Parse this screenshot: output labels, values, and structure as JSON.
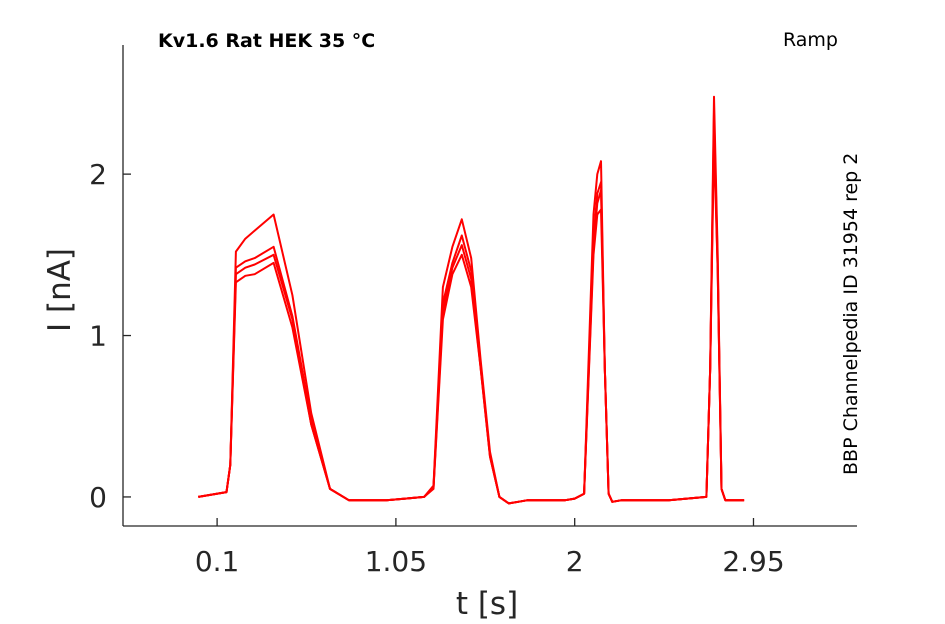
{
  "chart_data": {
    "type": "line",
    "title": "Kv1.6  Rat  HEK  35 °C",
    "protocol_label": "Ramp",
    "side_label": "BBP Channelpedia ID 31954 rep 2",
    "xlabel": "t [s]",
    "ylabel": "I [nA]",
    "xlim": [
      -0.4,
      3.5
    ],
    "ylim": [
      -0.18,
      2.8
    ],
    "xticks": [
      0.1,
      1.05,
      2,
      2.95
    ],
    "xtick_labels": [
      "0.1",
      "1.05",
      "2",
      "2.95"
    ],
    "yticks": [
      0,
      1,
      2
    ],
    "ytick_labels": [
      "0",
      "1",
      "2"
    ],
    "grid": false,
    "legend": "none",
    "color": "#ff0000",
    "series": [
      {
        "x": [
          -0.0,
          0.15,
          0.17,
          0.2,
          0.25,
          0.3,
          0.4,
          0.5,
          0.6,
          0.7,
          0.8,
          0.85,
          0.9,
          1.0,
          1.1,
          1.2,
          1.25,
          1.3,
          1.35,
          1.4,
          1.45,
          1.5,
          1.55,
          1.6,
          1.65,
          1.7,
          1.75,
          1.8,
          1.85,
          1.9,
          1.95,
          2.0,
          2.05,
          2.1,
          2.12,
          2.14,
          2.16,
          2.18,
          2.2,
          2.25,
          2.3,
          2.5,
          2.7,
          2.72,
          2.74,
          2.76,
          2.78,
          2.8,
          2.85,
          2.9
        ],
        "values": [
          0.0,
          0.03,
          0.2,
          1.33,
          1.37,
          1.38,
          1.45,
          1.05,
          0.45,
          0.05,
          -0.02,
          -0.02,
          -0.02,
          -0.02,
          -0.01,
          0.0,
          0.05,
          1.1,
          1.38,
          1.5,
          1.3,
          0.8,
          0.25,
          0.0,
          -0.04,
          -0.03,
          -0.02,
          -0.02,
          -0.02,
          -0.02,
          -0.02,
          -0.01,
          0.02,
          1.5,
          1.75,
          1.78,
          0.8,
          0.02,
          -0.03,
          -0.02,
          -0.02,
          -0.02,
          0.0,
          0.8,
          2.2,
          1.4,
          0.05,
          -0.02,
          -0.02,
          -0.02
        ]
      },
      {
        "x": [
          -0.0,
          0.15,
          0.17,
          0.2,
          0.25,
          0.3,
          0.4,
          0.5,
          0.6,
          0.7,
          0.8,
          0.85,
          0.9,
          1.0,
          1.1,
          1.2,
          1.25,
          1.3,
          1.35,
          1.4,
          1.45,
          1.5,
          1.55,
          1.6,
          1.65,
          1.7,
          1.75,
          1.8,
          1.85,
          1.9,
          1.95,
          2.0,
          2.05,
          2.1,
          2.12,
          2.14,
          2.16,
          2.18,
          2.2,
          2.25,
          2.3,
          2.5,
          2.7,
          2.72,
          2.74,
          2.76,
          2.78,
          2.8,
          2.85,
          2.9
        ],
        "values": [
          0.0,
          0.03,
          0.2,
          1.38,
          1.42,
          1.44,
          1.5,
          1.1,
          0.45,
          0.05,
          -0.02,
          -0.02,
          -0.02,
          -0.02,
          -0.01,
          0.0,
          0.06,
          1.15,
          1.42,
          1.56,
          1.35,
          0.8,
          0.25,
          0.0,
          -0.04,
          -0.03,
          -0.02,
          -0.02,
          -0.02,
          -0.02,
          -0.02,
          -0.01,
          0.02,
          1.55,
          1.82,
          1.9,
          0.8,
          0.02,
          -0.03,
          -0.02,
          -0.02,
          -0.02,
          0.0,
          0.8,
          2.3,
          1.4,
          0.05,
          -0.02,
          -0.02,
          -0.02
        ]
      },
      {
        "x": [
          -0.0,
          0.15,
          0.17,
          0.2,
          0.25,
          0.3,
          0.4,
          0.5,
          0.6,
          0.7,
          0.8,
          0.85,
          0.9,
          1.0,
          1.1,
          1.2,
          1.25,
          1.3,
          1.35,
          1.4,
          1.45,
          1.5,
          1.55,
          1.6,
          1.65,
          1.7,
          1.75,
          1.8,
          1.85,
          1.9,
          1.95,
          2.0,
          2.05,
          2.1,
          2.12,
          2.14,
          2.16,
          2.18,
          2.2,
          2.25,
          2.3,
          2.5,
          2.7,
          2.72,
          2.74,
          2.76,
          2.78,
          2.8,
          2.85,
          2.9
        ],
        "values": [
          0.0,
          0.03,
          0.2,
          1.42,
          1.46,
          1.48,
          1.55,
          1.12,
          0.48,
          0.05,
          -0.02,
          -0.02,
          -0.02,
          -0.02,
          -0.01,
          0.0,
          0.06,
          1.2,
          1.45,
          1.62,
          1.4,
          0.82,
          0.26,
          0.0,
          -0.04,
          -0.03,
          -0.02,
          -0.02,
          -0.02,
          -0.02,
          -0.02,
          -0.01,
          0.02,
          1.6,
          1.88,
          1.95,
          0.8,
          0.02,
          -0.03,
          -0.02,
          -0.02,
          -0.02,
          0.0,
          0.8,
          2.38,
          1.45,
          0.05,
          -0.02,
          -0.02,
          -0.02
        ]
      },
      {
        "x": [
          -0.0,
          0.15,
          0.17,
          0.2,
          0.25,
          0.3,
          0.4,
          0.5,
          0.6,
          0.7,
          0.8,
          0.85,
          0.9,
          1.0,
          1.1,
          1.2,
          1.25,
          1.3,
          1.35,
          1.4,
          1.45,
          1.5,
          1.55,
          1.6,
          1.65,
          1.7,
          1.75,
          1.8,
          1.85,
          1.9,
          1.95,
          2.0,
          2.05,
          2.1,
          2.12,
          2.14,
          2.16,
          2.18,
          2.2,
          2.25,
          2.3,
          2.5,
          2.7,
          2.72,
          2.74,
          2.76,
          2.78,
          2.8,
          2.85,
          2.9
        ],
        "values": [
          0.0,
          0.03,
          0.2,
          1.52,
          1.6,
          1.65,
          1.75,
          1.25,
          0.52,
          0.05,
          -0.02,
          -0.02,
          -0.02,
          -0.02,
          -0.01,
          0.0,
          0.07,
          1.3,
          1.55,
          1.72,
          1.48,
          0.85,
          0.28,
          0.0,
          -0.04,
          -0.03,
          -0.02,
          -0.02,
          -0.02,
          -0.02,
          -0.02,
          -0.01,
          0.02,
          1.75,
          2.0,
          2.08,
          0.8,
          0.02,
          -0.03,
          -0.02,
          -0.02,
          -0.02,
          0.0,
          0.8,
          2.48,
          1.5,
          0.05,
          -0.02,
          -0.02,
          -0.02
        ]
      }
    ]
  }
}
